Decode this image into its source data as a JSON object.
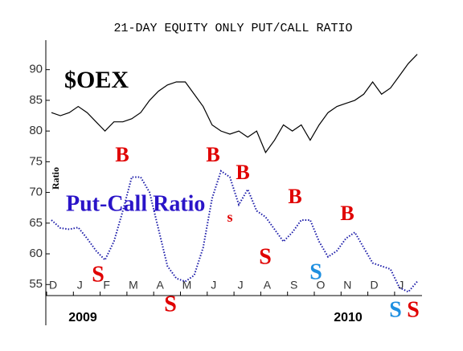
{
  "chart_data": {
    "type": "line",
    "title": "21-DAY EQUITY ONLY PUT/CALL RATIO",
    "y_label": "Ratio",
    "categories": [
      "D",
      null,
      null,
      "J",
      null,
      null,
      "F",
      null,
      null,
      "M",
      null,
      null,
      "A",
      null,
      null,
      "M",
      null,
      null,
      "J",
      null,
      null,
      "J",
      null,
      null,
      "A",
      null,
      null,
      "S",
      null,
      null,
      "O",
      null,
      null,
      "N",
      null,
      null,
      "D",
      null,
      null,
      "J",
      null,
      null
    ],
    "year_labels": [
      "2009",
      "2010"
    ],
    "series": [
      {
        "name": "$OEX",
        "color": "#000000",
        "values": [
          83,
          82.5,
          83,
          84,
          83,
          81.5,
          80,
          81.5,
          81.5,
          82,
          83,
          85,
          86.5,
          87.5,
          88,
          88,
          86,
          84,
          81,
          80,
          79.5,
          80,
          79,
          80,
          76.5,
          78.5,
          81,
          80,
          81,
          78.5,
          81,
          83,
          84,
          84.5,
          85,
          86,
          88,
          86,
          87,
          89,
          91,
          92.5
        ]
      },
      {
        "name": "Put-Call Ratio",
        "color": "#1a1aa8",
        "values": [
          65.5,
          64.2,
          64,
          64.3,
          62.5,
          60.5,
          59,
          62,
          67,
          72.5,
          72.5,
          70,
          64,
          58,
          56,
          55.5,
          56.5,
          61,
          69,
          73.5,
          72.5,
          68,
          70.5,
          67,
          66,
          64,
          62,
          63.5,
          65.5,
          65.5,
          62,
          59.5,
          60.5,
          62.5,
          63.5,
          61,
          58.5,
          58,
          57.5,
          54.5,
          53.8,
          55.5
        ]
      }
    ],
    "annotations": [
      {
        "text": "B",
        "color": "#e00000"
      },
      {
        "text": "B",
        "color": "#e00000"
      },
      {
        "text": "B",
        "color": "#e00000"
      },
      {
        "text": "s",
        "color": "#e00000"
      },
      {
        "text": "B",
        "color": "#e00000"
      },
      {
        "text": "B",
        "color": "#e00000"
      },
      {
        "text": "S",
        "color": "#e00000"
      },
      {
        "text": "S",
        "color": "#e00000"
      },
      {
        "text": "S",
        "color": "#e00000"
      },
      {
        "text": "S",
        "color": "#1e8fe0"
      },
      {
        "text": "S",
        "color": "#1e8fe0"
      },
      {
        "text": "S",
        "color": "#e00000"
      }
    ],
    "ylim": [
      53.2,
      94.8
    ],
    "yticks": [
      55,
      60,
      65,
      70,
      75,
      80,
      85,
      90
    ]
  }
}
